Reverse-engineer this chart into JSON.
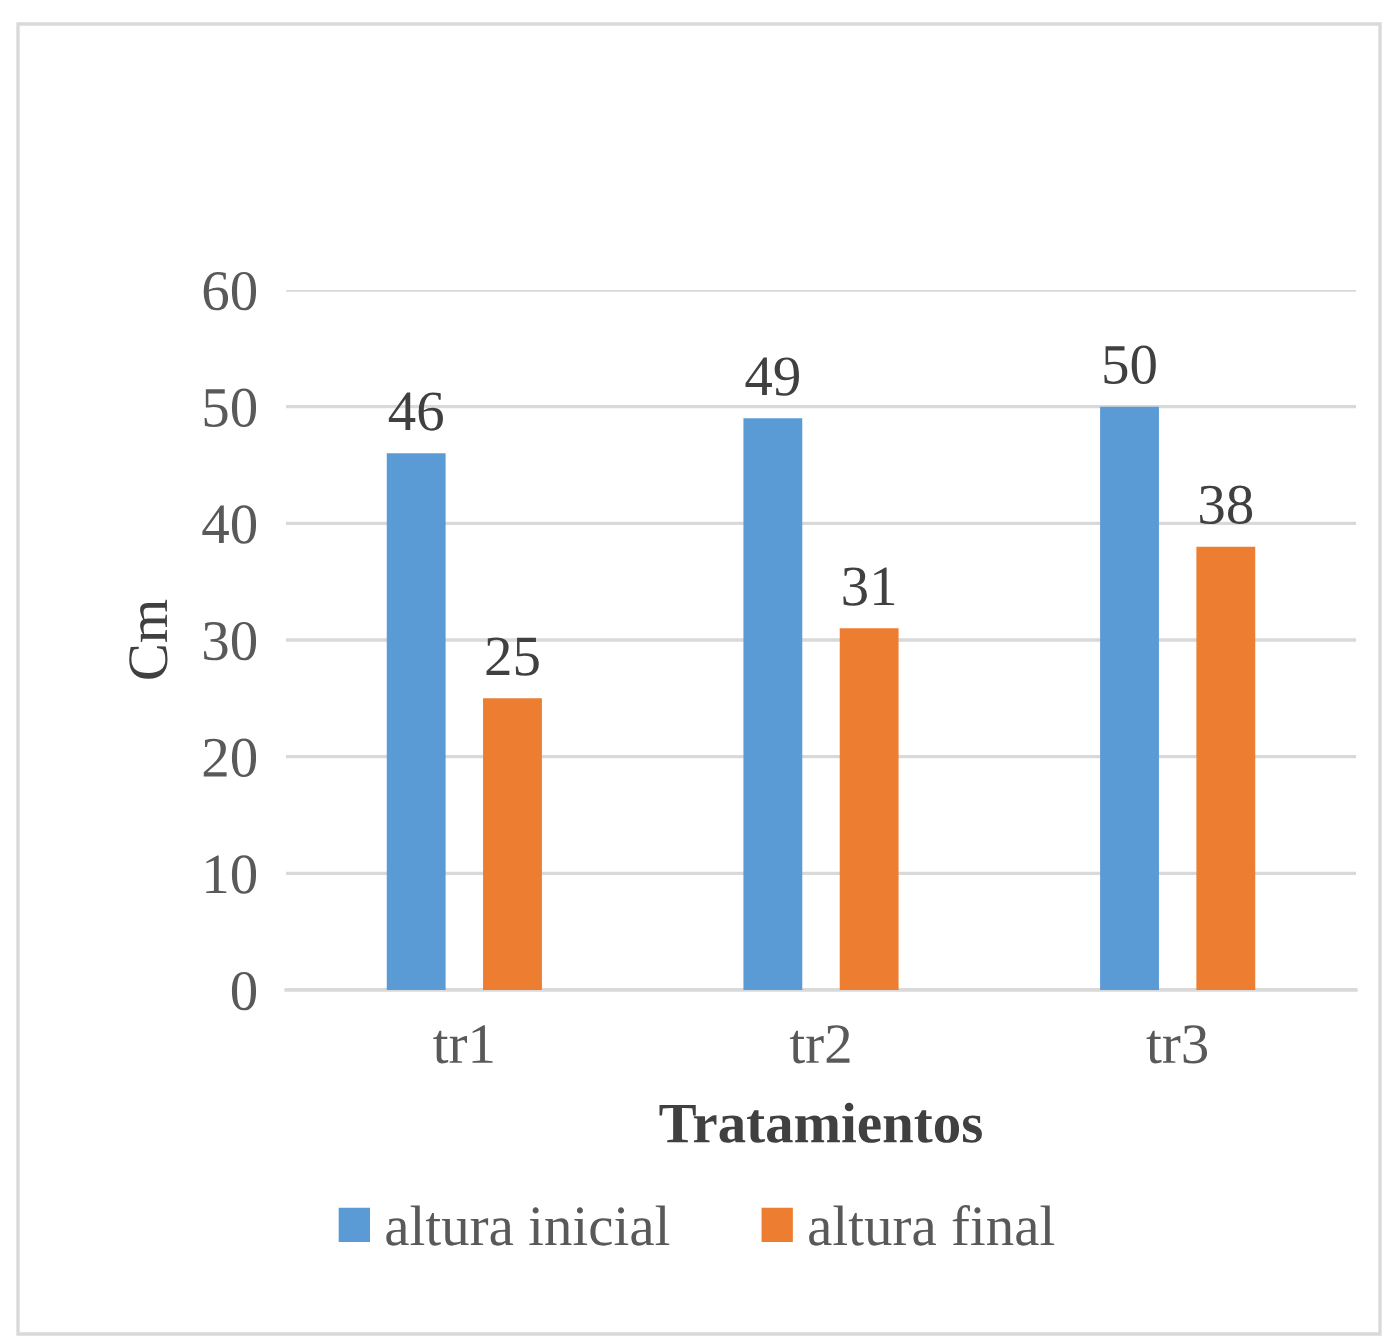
{
  "chart_data": {
    "type": "bar",
    "xlabel": "Tratamientos",
    "ylabel": "Cm",
    "categories": [
      "tr1",
      "tr2",
      "tr3"
    ],
    "series": [
      {
        "name": "altura inicial",
        "color": "#5b9bd5",
        "values": [
          46,
          49,
          50
        ]
      },
      {
        "name": "altura final",
        "color": "#ed7d31",
        "values": [
          25,
          31,
          38
        ]
      }
    ],
    "ylim": [
      0,
      60
    ],
    "yticks": [
      0,
      10,
      20,
      30,
      40,
      50,
      60
    ],
    "grid": "y",
    "legend": "bottom",
    "data_labels": true
  }
}
